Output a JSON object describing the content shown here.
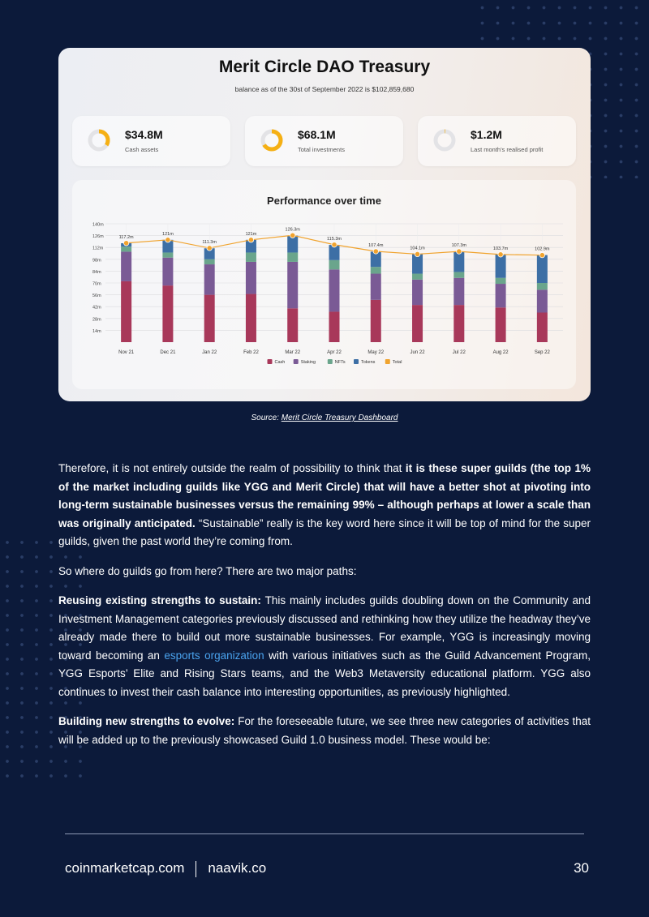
{
  "card": {
    "title": "Merit Circle DAO Treasury",
    "subtitle": "balance as of the 30st of September 2022 is $102,859,680",
    "stats": [
      {
        "value": "$34.8M",
        "label": "Cash assets",
        "fraction": 0.34
      },
      {
        "value": "$68.1M",
        "label": "Total investments",
        "fraction": 0.66
      },
      {
        "value": "$1.2M",
        "label": "Last month's realised profit",
        "fraction": 0.01
      }
    ],
    "perf_title": "Performance over time"
  },
  "chart_data": {
    "type": "bar",
    "stacked": true,
    "title": "Performance over time",
    "categories": [
      "Nov 21",
      "Dec 21",
      "Jan 22",
      "Feb 22",
      "Mar 22",
      "Apr 22",
      "May 22",
      "Jun 22",
      "Jul 22",
      "Aug 22",
      "Sep 22"
    ],
    "y_ticks": [
      "14m",
      "28m",
      "42m",
      "56m",
      "70m",
      "84m",
      "98m",
      "112m",
      "126m",
      "140m"
    ],
    "ylim": [
      0,
      140
    ],
    "series": [
      {
        "name": "Cash",
        "color": "#a8385a",
        "values": [
          72,
          67,
          56,
          57,
          40,
          36,
          50,
          44,
          44,
          41,
          35
        ]
      },
      {
        "name": "Staking",
        "color": "#7a5a95",
        "values": [
          35,
          33,
          36,
          38,
          55,
          50,
          31,
          30,
          32,
          28,
          27
        ]
      },
      {
        "name": "NFTs",
        "color": "#6aa58c",
        "values": [
          6,
          6,
          6,
          11,
          11,
          11,
          8,
          7,
          7,
          7,
          8
        ]
      },
      {
        "name": "Tokens",
        "color": "#3d6fa5",
        "values": [
          4,
          15,
          13,
          15,
          20,
          18,
          18,
          23,
          24,
          28,
          33
        ]
      },
      {
        "name": "Total",
        "color": "#f0a32e",
        "type": "line",
        "values": [
          117.2,
          121,
          111.3,
          121,
          126.3,
          115.3,
          107.4,
          104.1,
          107.3,
          103.7,
          102.9
        ]
      }
    ],
    "data_labels": [
      "117.2m",
      "121m",
      "111.3m",
      "121m",
      "126.3m",
      "115.3m",
      "107.4m",
      "104.1m",
      "107.3m",
      "103.7m",
      "102.9m"
    ],
    "legend": [
      "Cash",
      "Staking",
      "NFTs",
      "Tokens",
      "Total"
    ],
    "legend_position": "bottom",
    "grid": true
  },
  "source": {
    "prefix": "Source: ",
    "link": "Merit Circle Treasury Dashboard"
  },
  "body": {
    "p1_a": "Therefore, it is not entirely outside the realm of possibility to think that ",
    "p1_b": "it is these super guilds (the top 1% of the market including guilds like YGG and Merit Circle) that will have a better shot at pivoting into long-term sustainable businesses versus the remaining 99% – although perhaps at lower a scale than was originally anticipated.",
    "p1_c": " “Sustainable” really is the key word here since it will be top of mind for the super guilds, given the past world they’re coming from.",
    "p2": "So where do guilds go from here? There are two major paths:",
    "p3_a": "Reusing existing strengths to sustain:",
    "p3_b": " This mainly includes guilds doubling down on the Community and Investment Management categories previously discussed and rethinking how they utilize the headway they’ve already made there to build out more sustainable businesses. For example, YGG is increasingly moving toward becoming an ",
    "p3_link": "esports organization",
    "p3_c": " with various initiatives such as the Guild Advancement Program, YGG Esports’ Elite and Rising Stars teams, and the Web3 Metaversity educational platform. YGG also continues to invest their cash balance into interesting opportunities, as previously highlighted.",
    "p4_a": "Building new strengths to evolve:",
    "p4_b": " For the foreseeable future, we see three new categories of activities that will be added up to the previously showcased Guild 1.0 business model. These would be:"
  },
  "footer": {
    "site1": "coinmarketcap.com",
    "site2": "naavik.co",
    "page": "30"
  }
}
